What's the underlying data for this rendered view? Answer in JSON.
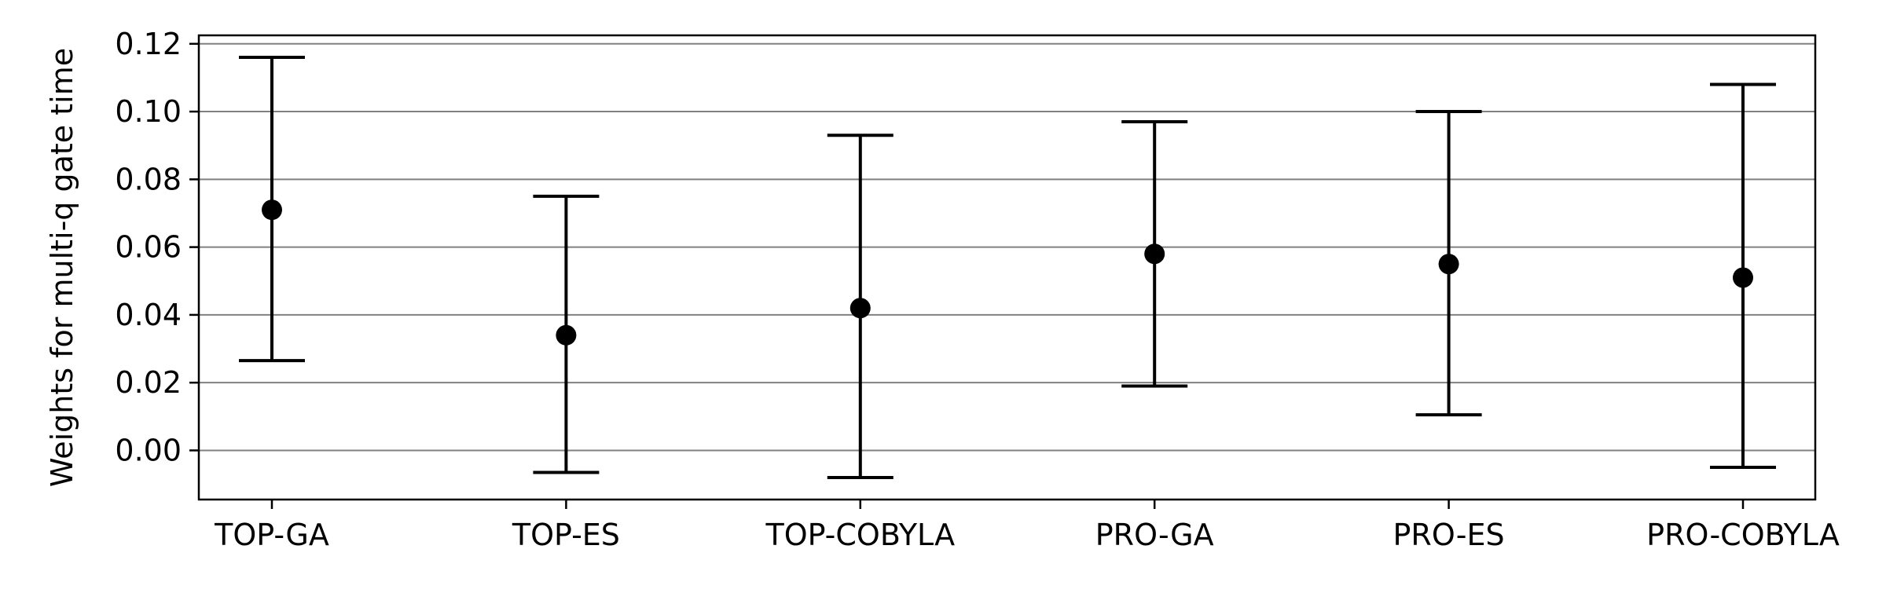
{
  "chart_data": {
    "type": "scatter",
    "title": "",
    "xlabel": "",
    "ylabel": "Weights for multi-q gate time",
    "categories": [
      "TOP-GA",
      "TOP-ES",
      "TOP-COBYLA",
      "PRO-GA",
      "PRO-ES",
      "PRO-COBYLA"
    ],
    "series": [
      {
        "values": [
          0.071,
          0.034,
          0.042,
          0.058,
          0.055,
          0.051
        ],
        "error_low": [
          0.0265,
          -0.0065,
          -0.008,
          0.019,
          0.0105,
          -0.005
        ],
        "error_high": [
          0.116,
          0.075,
          0.093,
          0.097,
          0.1,
          0.108
        ]
      }
    ],
    "ylim": [
      -0.0145,
      0.1225
    ],
    "yticks": [
      0.0,
      0.02,
      0.04,
      0.06,
      0.08,
      0.1,
      0.12
    ],
    "ytick_labels": [
      "0.00",
      "0.02",
      "0.04",
      "0.06",
      "0.08",
      "0.10",
      "0.12"
    ],
    "grid": "y",
    "legend": "none",
    "colors": {
      "marker": "#000000",
      "errorbar": "#000000",
      "grid": "#808080",
      "axes": "#000000"
    }
  }
}
